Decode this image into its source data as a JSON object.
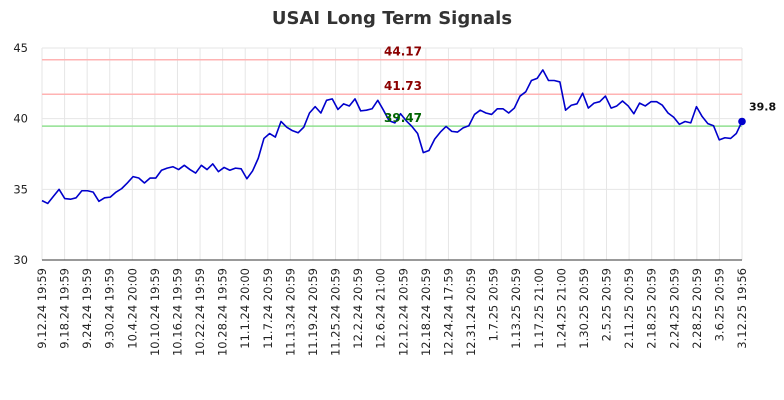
{
  "chart_data": {
    "type": "line",
    "title": "USAI Long Term Signals",
    "xlabel": "",
    "ylabel": "",
    "ylim": [
      30,
      45
    ],
    "yticks": [
      30,
      35,
      40,
      45
    ],
    "grid": true,
    "x_tick_labels": [
      "9.12.24 19:59",
      "9.18.24 19:59",
      "9.24.24 19:59",
      "9.30.24 19:59",
      "10.4.24 20:00",
      "10.10.24 19:59",
      "10.16.24 19:59",
      "10.22.24 19:59",
      "10.28.24 19:59",
      "11.1.24 20:00",
      "11.7.24 20:59",
      "11.13.24 20:59",
      "11.19.24 20:59",
      "11.25.24 20:59",
      "12.2.24 20:59",
      "12.6.24 21:00",
      "12.12.24 20:59",
      "12.18.24 20:59",
      "12.24.24 17:59",
      "12.31.24 20:59",
      "1.7.25 20:59",
      "1.13.25 20:59",
      "1.17.25 21:00",
      "1.24.25 21:00",
      "1.30.25 20:59",
      "2.5.25 20:59",
      "2.11.25 20:59",
      "2.18.25 20:59",
      "2.24.25 20:59",
      "2.28.25 20:59",
      "3.6.25 20:59",
      "3.12.25 19:56"
    ],
    "series": [
      {
        "color": "#0000cc",
        "values": [
          34.2,
          34.0,
          34.5,
          35.0,
          34.35,
          34.3,
          34.4,
          34.9,
          34.9,
          34.8,
          34.15,
          34.4,
          34.45,
          34.8,
          35.05,
          35.45,
          35.9,
          35.8,
          35.45,
          35.8,
          35.8,
          36.35,
          36.5,
          36.6,
          36.4,
          36.7,
          36.4,
          36.15,
          36.7,
          36.4,
          36.8,
          36.25,
          36.55,
          36.35,
          36.5,
          36.45,
          35.75,
          36.3,
          37.2,
          38.6,
          38.95,
          38.7,
          39.8,
          39.4,
          39.15,
          39.0,
          39.4,
          40.4,
          40.85,
          40.4,
          41.3,
          41.4,
          40.65,
          41.05,
          40.9,
          41.4,
          40.55,
          40.6,
          40.7,
          41.3,
          40.6,
          39.85,
          39.7,
          40.35,
          39.85,
          39.45,
          38.95,
          37.6,
          37.75,
          38.55,
          39.05,
          39.45,
          39.1,
          39.05,
          39.35,
          39.5,
          40.3,
          40.6,
          40.4,
          40.3,
          40.7,
          40.7,
          40.4,
          40.75,
          41.6,
          41.9,
          42.7,
          42.85,
          43.45,
          42.7,
          42.7,
          42.6,
          40.6,
          40.95,
          41.05,
          41.8,
          40.75,
          41.1,
          41.2,
          41.6,
          40.75,
          40.9,
          41.25,
          40.9,
          40.35,
          41.1,
          40.9,
          41.2,
          41.2,
          40.95,
          40.4,
          40.1,
          39.6,
          39.8,
          39.7,
          40.85,
          40.15,
          39.65,
          39.5,
          38.5,
          38.65,
          38.6,
          38.95,
          39.8
        ]
      }
    ],
    "levels": [
      {
        "value": 44.17,
        "label": "44.17",
        "line_color": "#ffb3b3",
        "label_color": "#8b0000"
      },
      {
        "value": 41.73,
        "label": "41.73",
        "line_color": "#ffb3b3",
        "label_color": "#8b0000"
      },
      {
        "value": 39.47,
        "label": "39.47",
        "line_color": "#90e090",
        "label_color": "#006400"
      }
    ],
    "last_value_label": "39.8",
    "marker_color": "#0000cc"
  }
}
